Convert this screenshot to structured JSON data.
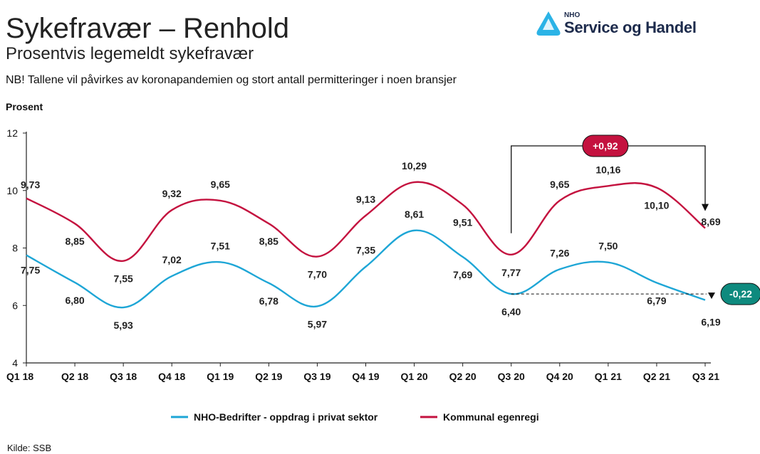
{
  "header": {
    "title": "Sykefravær – Renhold",
    "subtitle": "Prosentvis legemeldt sykefravær",
    "note": "NB! Tallene vil påvirkes av koronapandemien og stort antall permitteringer i noen bransjer"
  },
  "logo": {
    "small_text": "NHO",
    "main_text": "Service og Handel",
    "icon": "nho-logo-icon"
  },
  "source": "Kilde: SSB",
  "colors": {
    "nho_series": "#1ea6d6",
    "kommunal_series": "#c4123f",
    "negative_badge": "#0e8a7e"
  },
  "chart_data": {
    "type": "line",
    "ylabel": "Prosent",
    "ylim": [
      4,
      12
    ],
    "yticks": [
      4,
      6,
      8,
      10,
      12
    ],
    "grid": false,
    "legend_position": "bottom",
    "categories": [
      "Q1 18",
      "Q2 18",
      "Q3 18",
      "Q4 18",
      "Q1 19",
      "Q2 19",
      "Q3 19",
      "Q4 19",
      "Q1 20",
      "Q2 20",
      "Q3 20",
      "Q4 20",
      "Q1 21",
      "Q2 21",
      "Q3 21"
    ],
    "series": [
      {
        "name": "NHO-Bedrifter - oppdrag i privat sektor",
        "values": [
          7.75,
          6.8,
          5.93,
          7.02,
          7.51,
          6.78,
          5.97,
          7.35,
          8.61,
          7.69,
          6.4,
          7.26,
          7.5,
          6.79,
          6.19
        ],
        "labels": [
          "7,75",
          "6,80",
          "5,93",
          "7,02",
          "7,51",
          "6,78",
          "5,97",
          "7,35",
          "8,61",
          "7,69",
          "6,40",
          "7,26",
          "7,50",
          "6,79",
          "6,19"
        ]
      },
      {
        "name": "Kommunal egenregi",
        "values": [
          9.73,
          8.85,
          7.55,
          9.32,
          9.65,
          8.85,
          7.7,
          9.13,
          10.29,
          9.51,
          7.77,
          9.65,
          10.16,
          10.1,
          8.69
        ],
        "labels": [
          "9,73",
          "8,85",
          "7,55",
          "9,32",
          "9,65",
          "8,85",
          "7,70",
          "9,13",
          "10,29",
          "9,51",
          "7,77",
          "9,65",
          "10,16",
          "10,10",
          "8,69"
        ]
      }
    ],
    "annotations": [
      {
        "text": "+0,92",
        "series": "Kommunal egenregi",
        "from": "Q3 20",
        "to": "Q3 21"
      },
      {
        "text": "-0,22",
        "series": "NHO-Bedrifter - oppdrag i privat sektor",
        "from": "Q3 20",
        "to": "Q3 21"
      }
    ]
  }
}
